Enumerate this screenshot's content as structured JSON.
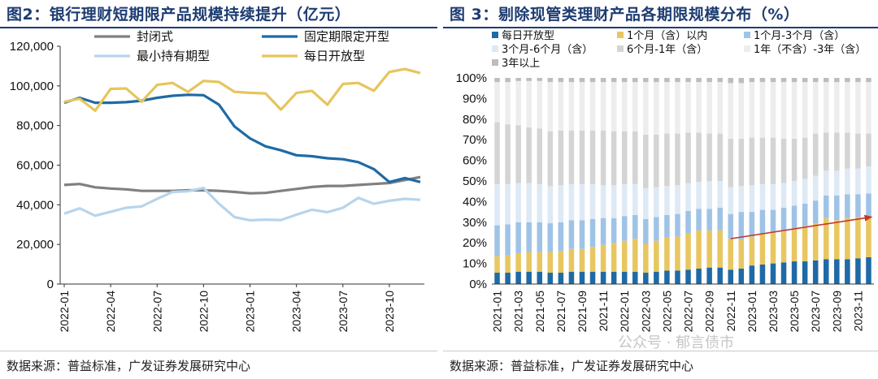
{
  "charts": [
    {
      "title": "图2：银行理财短期限产品规模持续提升（亿元）",
      "source": "数据来源：普益标准，广发证券发展研究中心"
    },
    {
      "title": "图 3：剔除现管类理财产品各期限规模分布（%）",
      "source": "数据来源：普益标准，广发证券发展研究中心",
      "watermark": "公众号 · 郁言债市"
    }
  ],
  "colors": {
    "title": "#1d3c72",
    "closed": "#808080",
    "fixed_open": "#1f6aa5",
    "min_hold": "#b7d4ec",
    "daily_open": "#e6c55c",
    "b_daily": "#1f6aa5",
    "b_1m": "#e8c660",
    "b_1_3m": "#9fc3e6",
    "b_3_6m": "#dde9f5",
    "b_6m_1y": "#d4d4d4",
    "b_1_3y": "#ededed",
    "b_3y": "#bdbdbd",
    "arrow": "#c0392b"
  },
  "chart_data": [
    {
      "type": "line",
      "title": "图2：银行理财短期限产品规模持续提升（亿元）",
      "xlabel": "",
      "ylabel": "",
      "ylim": [
        0,
        120000
      ],
      "yticks": [
        0,
        20000,
        40000,
        60000,
        80000,
        100000,
        120000
      ],
      "ytick_labels": [
        "0",
        "20,000",
        "40,000",
        "60,000",
        "80,000",
        "100,000",
        "120,000"
      ],
      "x": [
        "2022-01",
        "2022-02",
        "2022-03",
        "2022-04",
        "2022-05",
        "2022-06",
        "2022-07",
        "2022-08",
        "2022-09",
        "2022-10",
        "2022-11",
        "2022-12",
        "2023-01",
        "2023-02",
        "2023-03",
        "2023-04",
        "2023-05",
        "2023-06",
        "2023-07",
        "2023-08",
        "2023-09",
        "2023-10",
        "2023-11",
        "2023-12"
      ],
      "xtick_labels": [
        "2022-01",
        "2022-04",
        "2022-07",
        "2022-10",
        "2023-01",
        "2023-04",
        "2023-07",
        "2023-10"
      ],
      "xtick_index": [
        0,
        3,
        6,
        9,
        12,
        15,
        18,
        21
      ],
      "legend_position": "top",
      "series": [
        {
          "name": "封闭式",
          "color_key": "closed",
          "values": [
            50000,
            50500,
            48800,
            48200,
            47800,
            47000,
            47000,
            47000,
            47300,
            47300,
            47000,
            46500,
            45800,
            46000,
            47000,
            48000,
            49000,
            49500,
            49500,
            50000,
            50500,
            51000,
            52500,
            54000
          ]
        },
        {
          "name": "固定期限定开型",
          "color_key": "fixed_open",
          "values": [
            91500,
            94000,
            91500,
            91500,
            91800,
            92500,
            94000,
            95000,
            95500,
            95300,
            90500,
            79500,
            73500,
            69500,
            67500,
            65000,
            64500,
            63500,
            63000,
            61500,
            58000,
            51500,
            53500,
            51500
          ]
        },
        {
          "name": "最小持有期型",
          "color_key": "min_hold",
          "values": [
            35500,
            38200,
            34500,
            36500,
            38500,
            39200,
            43000,
            46500,
            46800,
            48500,
            40500,
            33800,
            32200,
            32500,
            32300,
            35000,
            37500,
            36300,
            38500,
            43500,
            40500,
            42000,
            43000,
            42500
          ]
        },
        {
          "name": "每日开放型",
          "color_key": "daily_open",
          "values": [
            92000,
            93500,
            87500,
            98500,
            98700,
            92000,
            100500,
            101500,
            97000,
            102500,
            102000,
            97000,
            96500,
            96200,
            88000,
            96500,
            97500,
            90500,
            101000,
            101500,
            97500,
            107000,
            108500,
            106500
          ]
        }
      ]
    },
    {
      "type": "bar",
      "stacked": true,
      "title": "图 3：剔除现管类理财产品各期限规模分布（%）",
      "xlabel": "",
      "ylabel": "",
      "ylim": [
        0,
        100
      ],
      "yticks": [
        0,
        10,
        20,
        30,
        40,
        50,
        60,
        70,
        80,
        90,
        100
      ],
      "ytick_labels": [
        "0%",
        "10%",
        "20%",
        "30%",
        "40%",
        "50%",
        "60%",
        "70%",
        "80%",
        "90%",
        "100%"
      ],
      "categories": [
        "2021-01",
        "2021-02",
        "2021-03",
        "2021-04",
        "2021-05",
        "2021-06",
        "2021-07",
        "2021-08",
        "2021-09",
        "2021-10",
        "2021-11",
        "2021-12",
        "2022-01",
        "2022-02",
        "2022-03",
        "2022-04",
        "2022-05",
        "2022-06",
        "2022-07",
        "2022-08",
        "2022-09",
        "2022-10",
        "2022-11",
        "2022-12",
        "2023-01",
        "2023-02",
        "2023-03",
        "2023-04",
        "2023-05",
        "2023-06",
        "2023-07",
        "2023-08",
        "2023-09",
        "2023-10",
        "2023-11",
        "2023-12"
      ],
      "xtick_labels": [
        "2021-01",
        "2021-03",
        "2021-05",
        "2021-07",
        "2021-09",
        "2021-11",
        "2022-01",
        "2022-03",
        "2022-05",
        "2022-07",
        "2022-09",
        "2022-11",
        "2023-01",
        "2023-03",
        "2023-05",
        "2023-07",
        "2023-09",
        "2023-11"
      ],
      "xtick_index": [
        0,
        2,
        4,
        6,
        8,
        10,
        12,
        14,
        16,
        18,
        20,
        22,
        24,
        26,
        28,
        30,
        32,
        34
      ],
      "legend_position": "top",
      "series": [
        {
          "name": "每日开放型",
          "color_key": "b_daily",
          "values": [
            5.5,
            5.5,
            6,
            6,
            6,
            5.5,
            5.5,
            6,
            6,
            6,
            6,
            6,
            6,
            6,
            5.5,
            6,
            6.5,
            6.5,
            7,
            7.5,
            8,
            8,
            7,
            7.5,
            9,
            9.5,
            10,
            10.5,
            11,
            11,
            11.5,
            12,
            12,
            12,
            12.5,
            13
          ]
        },
        {
          "name": "1个月（含）以内",
          "color_key": "b_1m",
          "values": [
            8,
            8.5,
            9,
            9.5,
            9.5,
            10,
            10.5,
            11,
            11,
            12,
            13,
            14,
            15,
            16,
            14,
            15,
            16,
            16.5,
            17.5,
            18.5,
            18,
            18,
            15,
            14,
            14,
            15,
            15,
            15,
            16,
            17,
            18,
            20,
            19,
            20,
            20,
            20
          ]
        },
        {
          "name": "1个月-3个月（含）",
          "color_key": "b_1_3m",
          "values": [
            15,
            15,
            15,
            14.5,
            14.5,
            14,
            14,
            14,
            14,
            13.5,
            13,
            12,
            12,
            11.5,
            12,
            11.5,
            11,
            11,
            11,
            10.5,
            10.5,
            11,
            12,
            13.5,
            12,
            11.5,
            11,
            11.5,
            11,
            11,
            11,
            11,
            12,
            11.5,
            11,
            11
          ]
        },
        {
          "name": "3个月-6个月（含）",
          "color_key": "b_3_6m",
          "values": [
            20,
            19.5,
            19,
            19,
            18.5,
            18,
            18,
            17.5,
            17.5,
            17,
            16,
            16,
            15.5,
            15,
            15,
            14.5,
            14,
            14,
            13.5,
            13,
            13.5,
            13,
            13,
            12.5,
            13,
            12.5,
            12.5,
            12,
            12,
            12,
            12,
            12,
            12,
            12.5,
            12.5,
            13
          ]
        },
        {
          "name": "6个月-1年（含）",
          "color_key": "b_6m_1y",
          "values": [
            30,
            29,
            28,
            27,
            27,
            26.5,
            26.5,
            26,
            26,
            26,
            26.5,
            26,
            25.5,
            25.5,
            26,
            25.5,
            25.5,
            25,
            24.5,
            24,
            23,
            23,
            23.5,
            23,
            23,
            22.5,
            22.5,
            21.5,
            20.5,
            20,
            20.5,
            18.5,
            18.5,
            17.5,
            17,
            16
          ]
        },
        {
          "name": "1年（不含）-3年（含）",
          "color_key": "b_1_3y",
          "values": [
            19.5,
            20.5,
            21.5,
            22.5,
            23,
            24,
            23.5,
            23.5,
            23.5,
            23.5,
            23.5,
            24,
            24,
            24,
            25.5,
            25.5,
            25,
            25,
            24.5,
            24.5,
            25,
            25,
            27,
            27,
            27,
            27,
            27,
            27.5,
            27.5,
            27,
            25,
            24.5,
            24.5,
            24.5,
            25,
            25
          ]
        },
        {
          "name": "3年以上",
          "color_key": "b_3y",
          "values": [
            2,
            2,
            1.5,
            1.5,
            1.5,
            2,
            2,
            2,
            2,
            2,
            2,
            2,
            2,
            2,
            2,
            2,
            2,
            2,
            2,
            2,
            2,
            2,
            2.5,
            2.5,
            2,
            2,
            2,
            2,
            2,
            2,
            2,
            2,
            2,
            2,
            2,
            2
          ]
        }
      ],
      "annotations": [
        {
          "type": "arrow",
          "from_category": "2022-11",
          "from_value": 22,
          "to_category": "2023-12",
          "to_value": 32.5
        }
      ]
    }
  ]
}
